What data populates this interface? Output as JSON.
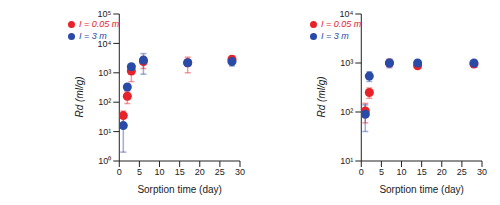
{
  "chart_data": [
    {
      "type": "scatter",
      "x_label": "Sorption time (day)",
      "y_label": "Rd (ml/g)",
      "xlim": [
        0,
        30
      ],
      "xticks": [
        0,
        5,
        10,
        15,
        20,
        25,
        30
      ],
      "ylim": [
        1,
        100000
      ],
      "yticks": [
        {
          "value": 1,
          "label": "10⁰"
        },
        {
          "value": 10,
          "label": "10¹"
        },
        {
          "value": 100,
          "label": "10²"
        },
        {
          "value": 1000,
          "label": "10³"
        },
        {
          "value": 10000,
          "label": "10⁴"
        },
        {
          "value": 100000,
          "label": "10⁵"
        }
      ],
      "log": "y",
      "legend": "top-left",
      "series": [
        {
          "name": "I = 0.05 m",
          "color": "#e8222a",
          "marker": "circle",
          "x": [
            1,
            2,
            3,
            6,
            17,
            28
          ],
          "values": [
            35,
            160,
            1150,
            2400,
            2200,
            2900
          ],
          "errors": [
            15,
            70,
            650,
            1000,
            1200,
            800
          ]
        },
        {
          "name": "I = 3 m",
          "color": "#2a4aa8",
          "marker": "circle",
          "x": [
            1,
            2,
            3,
            6,
            17,
            28
          ],
          "values": [
            16,
            330,
            1600,
            2700,
            2200,
            2400
          ],
          "errors": [
            14,
            40,
            150,
            1800,
            500,
            700
          ]
        }
      ]
    },
    {
      "type": "scatter",
      "x_label": "Sorption time (day)",
      "y_label": "Rd (ml/g)",
      "xlim": [
        0,
        30
      ],
      "xticks": [
        0,
        5,
        10,
        15,
        20,
        25,
        30
      ],
      "ylim": [
        10,
        10000
      ],
      "yticks": [
        {
          "value": 10,
          "label": "10¹"
        },
        {
          "value": 100,
          "label": "10²"
        },
        {
          "value": 1000,
          "label": "10³"
        },
        {
          "value": 10000,
          "label": "10⁴"
        }
      ],
      "log": "y",
      "legend": "top-left",
      "series": [
        {
          "name": "I = 0.05 m",
          "color": "#e8222a",
          "marker": "circle",
          "x": [
            1,
            2,
            7,
            14,
            28
          ],
          "values": [
            105,
            250,
            1000,
            880,
            950
          ],
          "errors": [
            45,
            60,
            150,
            80,
            80
          ]
        },
        {
          "name": "I = 3 m",
          "color": "#2a4aa8",
          "marker": "circle",
          "x": [
            1,
            2,
            7,
            14,
            28
          ],
          "values": [
            90,
            540,
            1000,
            1000,
            1000
          ],
          "errors": [
            50,
            120,
            200,
            100,
            100
          ]
        }
      ]
    }
  ]
}
